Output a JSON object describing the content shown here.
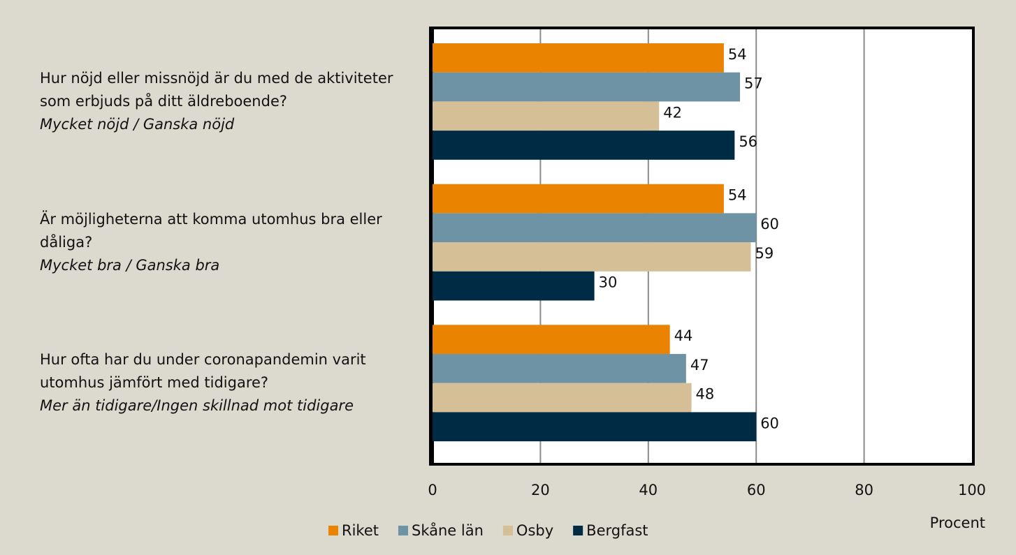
{
  "chart_data": {
    "type": "hbar",
    "categories": [
      "Hur nöjd eller missnöjd är du med de aktiviteter som erbjuds på ditt äldreboende?",
      "Är möjligheterna att komma utomhus bra eller dåliga?",
      "Hur ofta har du under coronapandemin varit utomhus jämfört med tidigare?"
    ],
    "category_notes": [
      "Mycket nöjd / Ganska nöjd",
      "Mycket bra / Ganska bra",
      "Mer än tidigare/Ingen skillnad mot tidigare"
    ],
    "series": [
      {
        "name": "Riket",
        "color": "#e98300",
        "values": [
          54,
          54,
          44
        ]
      },
      {
        "name": "Skåne län",
        "color": "#6d93a5",
        "values": [
          57,
          60,
          47
        ]
      },
      {
        "name": "Osby",
        "color": "#d4bf97",
        "values": [
          42,
          59,
          48
        ]
      },
      {
        "name": "Bergfast",
        "color": "#002b45",
        "values": [
          56,
          30,
          60
        ]
      }
    ],
    "xlim": [
      0,
      100
    ],
    "xticks": [
      0,
      20,
      40,
      60,
      80,
      100
    ],
    "xlabel": "Procent",
    "grid": true,
    "legend": "bottom"
  }
}
